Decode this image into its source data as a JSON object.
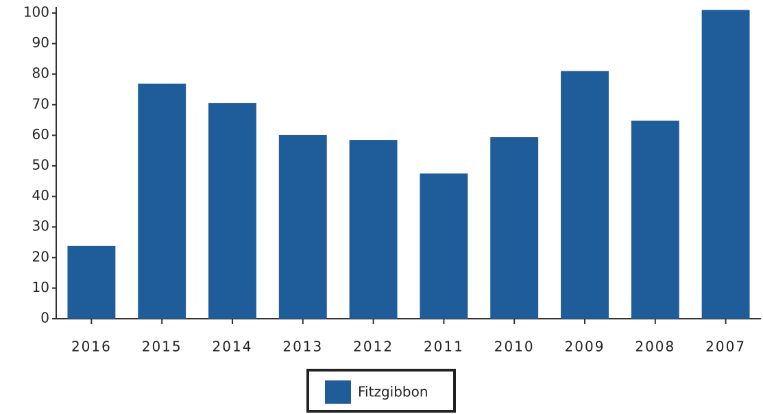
{
  "chart_data": {
    "type": "bar",
    "categories": [
      "2016",
      "2015",
      "2014",
      "2013",
      "2012",
      "2011",
      "2010",
      "2009",
      "2008",
      "2007"
    ],
    "series": [
      {
        "name": "Fitzgibbon",
        "color": "#1f5d9a",
        "values": [
          23.8,
          76.9,
          70.6,
          60.1,
          58.5,
          47.5,
          59.4,
          81,
          64.8,
          101
        ]
      }
    ],
    "ylim": [
      0,
      100
    ],
    "yticks": [
      0,
      10,
      20,
      30,
      40,
      50,
      60,
      70,
      80,
      90,
      100
    ],
    "grid": false,
    "legend": "bottom"
  }
}
